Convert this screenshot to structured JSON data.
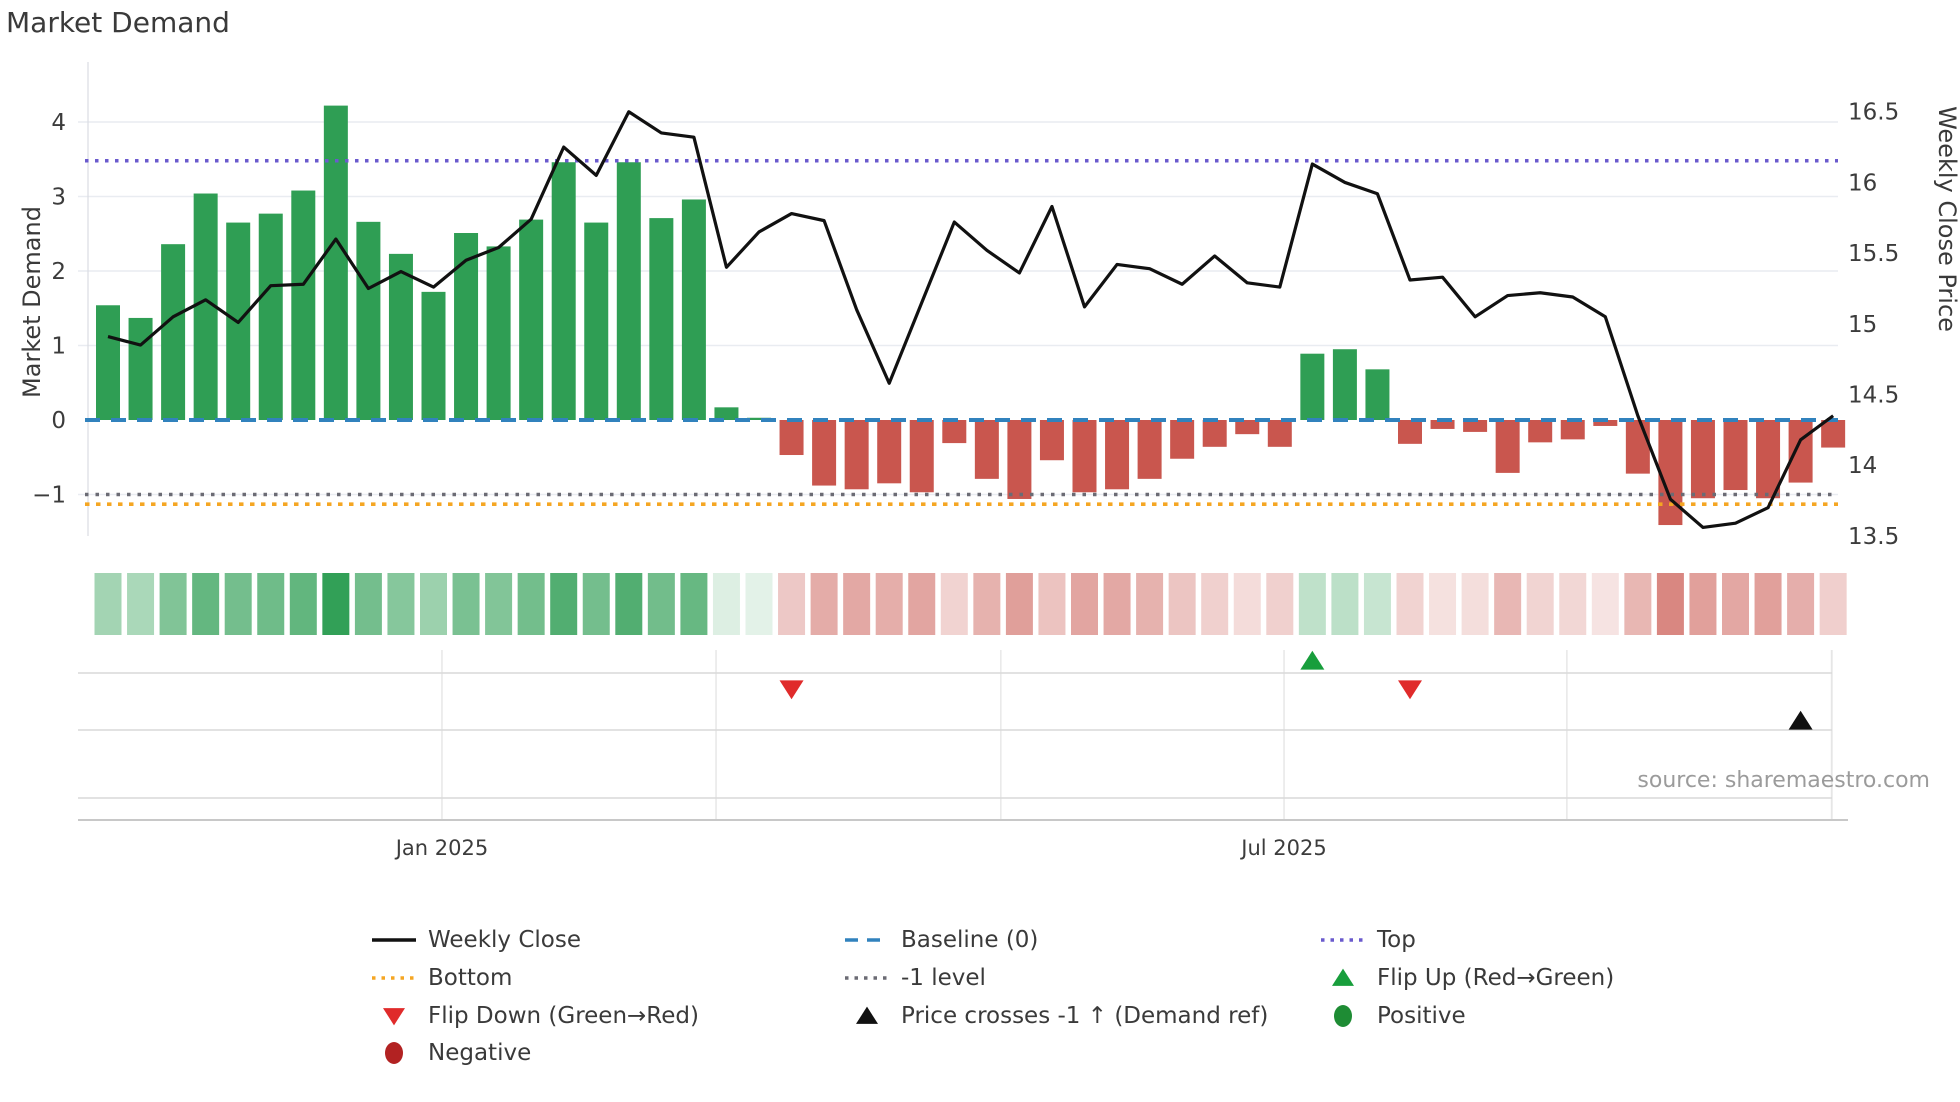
{
  "title": "Market Demand",
  "source_text": "source: sharemaestro.com",
  "axes": {
    "left_label": "Market Demand",
    "right_label": "Weekly Close Price",
    "left_ticks": [
      "4",
      "3",
      "2",
      "1",
      "0",
      "−1"
    ],
    "left_tick_values": [
      4,
      3,
      2,
      1,
      0,
      -1
    ],
    "right_ticks": [
      "16.5",
      "16",
      "15.5",
      "15",
      "14.5",
      "14",
      "13.5"
    ],
    "right_tick_values": [
      16.5,
      16,
      15.5,
      15,
      14.5,
      14,
      13.5
    ],
    "x_ticks": [
      "Jan 2025",
      "Jul 2025"
    ]
  },
  "chart_data": {
    "type": "bar+line",
    "x_unit": "week_index",
    "n_points": 54,
    "title": "Market Demand",
    "left_ylabel": "Market Demand",
    "right_ylabel": "Weekly Close Price",
    "left_ylim": [
      -1.56,
      4.8
    ],
    "right_ylim": [
      13.5,
      16.85
    ],
    "grid": "horizontal_on_integers",
    "bar_series": {
      "name": "Market Demand",
      "positive_color": "#2f9e54",
      "negative_color": "#c9564e",
      "values": [
        1.54,
        1.37,
        2.36,
        3.04,
        2.65,
        2.77,
        3.08,
        4.22,
        2.66,
        2.23,
        1.72,
        2.51,
        2.33,
        2.69,
        3.46,
        2.65,
        3.46,
        2.71,
        2.96,
        0.17,
        0.03,
        -0.47,
        -0.88,
        -0.93,
        -0.85,
        -0.97,
        -0.31,
        -0.79,
        -1.06,
        -0.54,
        -0.97,
        -0.93,
        -0.79,
        -0.52,
        -0.36,
        -0.19,
        -0.36,
        0.89,
        0.95,
        0.68,
        -0.32,
        -0.12,
        -0.16,
        -0.71,
        -0.3,
        -0.26,
        -0.08,
        -0.72,
        -1.41,
        -1.05,
        -0.94,
        -1.05,
        -0.84,
        -0.37
      ]
    },
    "line_series": {
      "name": "Weekly Close",
      "axis": "right",
      "color": "#111111",
      "values": [
        14.91,
        14.85,
        15.05,
        15.17,
        15.01,
        15.27,
        15.28,
        15.6,
        15.25,
        15.37,
        15.26,
        15.45,
        15.54,
        15.74,
        16.25,
        16.05,
        16.5,
        16.35,
        16.32,
        15.4,
        15.65,
        15.78,
        15.73,
        15.1,
        14.58,
        15.15,
        15.72,
        15.52,
        15.36,
        15.83,
        15.12,
        15.42,
        15.39,
        15.28,
        15.48,
        15.29,
        15.26,
        16.13,
        16.0,
        15.92,
        15.31,
        15.33,
        15.05,
        15.2,
        15.22,
        15.19,
        15.05,
        14.35,
        13.76,
        13.56,
        13.59,
        13.7,
        14.18,
        14.35
      ]
    },
    "reference_lines": {
      "baseline": {
        "value": 0,
        "label": "Baseline (0)",
        "color": "#3182bd",
        "style": "dashed"
      },
      "top": {
        "value": 3.48,
        "label": "Top",
        "color": "#6a5acd",
        "style": "dotted"
      },
      "minus1": {
        "value": -1,
        "label": "-1 level",
        "color": "#6b6b74",
        "style": "dotted"
      },
      "bottom": {
        "value": -1.13,
        "label": "Bottom",
        "color": "#f5a623",
        "style": "dotted"
      }
    },
    "markers": {
      "flip_up_weeks": [
        37
      ],
      "flip_down_weeks": [
        21,
        40
      ],
      "price_cross_up_weeks": [
        52
      ]
    },
    "heatmap_strip": "color_intensity_mirrors_bar_values",
    "x_tick_labels": [
      "Jan 2025",
      "Jul 2025"
    ],
    "x_tick_week_positions": [
      10.26,
      36.13
    ],
    "x_minor_grid_week_positions": [
      18.68,
      27.43,
      44.82,
      52.95
    ]
  },
  "legend": {
    "items": [
      {
        "label": "Weekly Close",
        "swatch": "line",
        "color": "#111111"
      },
      {
        "label": "Baseline (0)",
        "swatch": "dash",
        "color": "#3182bd"
      },
      {
        "label": "Top",
        "swatch": "dots",
        "color": "#6a5acd"
      },
      {
        "label": "Bottom",
        "swatch": "dots",
        "color": "#f5a623"
      },
      {
        "label": "-1 level",
        "swatch": "dots",
        "color": "#6b6b74"
      },
      {
        "label": "Flip Up (Red→Green)",
        "swatch": "tri-up",
        "color": "#189e3c"
      },
      {
        "label": "Flip Down (Green→Red)",
        "swatch": "tri-down",
        "color": "#e02b2b"
      },
      {
        "label": "Price crosses -1 ↑ (Demand ref)",
        "swatch": "tri-up",
        "color": "#111111"
      },
      {
        "label": "Positive",
        "swatch": "circle",
        "color": "#1e8c34"
      },
      {
        "label": "Negative",
        "swatch": "circle",
        "color": "#b22222"
      }
    ]
  },
  "colors": {
    "bar_positive": "#2f9e54",
    "bar_negative": "#c9564e",
    "price_line": "#111111",
    "baseline": "#3182bd",
    "top_line": "#6a5acd",
    "bottom_line": "#f5a623",
    "minus1_line": "#6b6b74",
    "grid": "#e9ecf1",
    "panel_line": "#d9d9d9",
    "axis_spine": "#c8c8c8",
    "tick_text": "#3c3c3c",
    "source_text": "#9b9b9b"
  }
}
